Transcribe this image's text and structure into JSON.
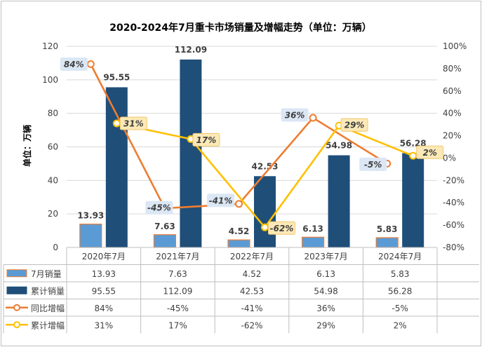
{
  "chart_data": {
    "type": "bar",
    "title": "2020-2024年7月重卡市场销量及增幅走势（单位：万辆）",
    "ylabel": "单位：万辆",
    "categories": [
      "2020年7月",
      "2021年7月",
      "2022年7月",
      "2023年7月",
      "2024年7月"
    ],
    "ylim": [
      0,
      120
    ],
    "y_ticks": [
      "0",
      "20",
      "40",
      "60",
      "80",
      "100",
      "120"
    ],
    "y2lim": [
      -80,
      100
    ],
    "y2_ticks": [
      "-80%",
      "-60%",
      "-40%",
      "-20%",
      "0%",
      "20%",
      "40%",
      "60%",
      "80%",
      "100%"
    ],
    "grid": true,
    "legend": "data-table",
    "series": [
      {
        "name": "7月销量",
        "kind": "bar",
        "axis": "left",
        "color": "#5b9bd5",
        "values": [
          13.93,
          7.63,
          4.52,
          6.13,
          5.83
        ],
        "labels": [
          "13.93",
          "7.63",
          "4.52",
          "6.13",
          "5.83"
        ]
      },
      {
        "name": "累计销量",
        "kind": "bar",
        "axis": "left",
        "color": "#1f4e79",
        "values": [
          95.55,
          112.09,
          42.53,
          54.98,
          56.28
        ],
        "labels": [
          "95.55",
          "112.09",
          "42.53",
          "54.98",
          "56.28"
        ]
      },
      {
        "name": "同比增幅",
        "kind": "line",
        "axis": "right",
        "color": "#ed7d31",
        "values": [
          84,
          -45,
          -41,
          36,
          -5
        ],
        "labels": [
          "84%",
          "-45%",
          "-41%",
          "36%",
          "-5%"
        ]
      },
      {
        "name": "累计增幅",
        "kind": "line",
        "axis": "right",
        "color": "#ffc000",
        "values": [
          31,
          17,
          -62,
          29,
          2
        ],
        "labels": [
          "31%",
          "17%",
          "-62%",
          "29%",
          "2%"
        ]
      }
    ]
  }
}
